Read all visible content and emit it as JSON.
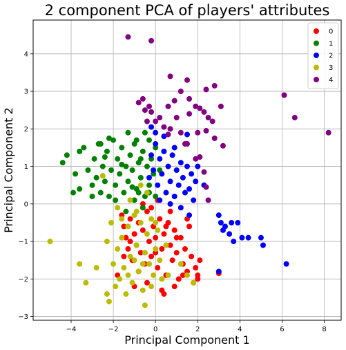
{
  "chart_data": {
    "type": "scatter",
    "title": "2 component PCA of players' attributes",
    "xlabel": "Principal Component 1",
    "ylabel": "Principal Component 2",
    "xlim": [
      -5.8,
      8.8
    ],
    "ylim": [
      -3.1,
      4.9
    ],
    "xticks": [
      "−4",
      "−2",
      "0",
      "2",
      "4",
      "6",
      "8"
    ],
    "xtick_values": [
      -4,
      -2,
      0,
      2,
      4,
      6,
      8
    ],
    "yticks": [
      "−3",
      "−2",
      "−1",
      "0",
      "1",
      "2",
      "3",
      "4"
    ],
    "ytick_values": [
      -3,
      -2,
      -1,
      0,
      1,
      2,
      3,
      4
    ],
    "grid": true,
    "legend_position": "top-right",
    "series": [
      {
        "name": "0",
        "color": "#ff0000",
        "points": [
          [
            -1.6,
            -0.3
          ],
          [
            -1.5,
            -0.6
          ],
          [
            -1.4,
            -0.9
          ],
          [
            -1.3,
            -1.2
          ],
          [
            -1.2,
            -0.4
          ],
          [
            -1.1,
            -1.5
          ],
          [
            -1.0,
            -0.8
          ],
          [
            -0.9,
            -1.1
          ],
          [
            -0.8,
            -0.5
          ],
          [
            -0.7,
            -1.3
          ],
          [
            -0.6,
            -0.7
          ],
          [
            -0.5,
            -1.6
          ],
          [
            -0.4,
            -0.2
          ],
          [
            -0.3,
            -1.0
          ],
          [
            -0.2,
            -1.4
          ],
          [
            -0.1,
            -0.6
          ],
          [
            0.0,
            -0.9
          ],
          [
            0.1,
            -1.7
          ],
          [
            0.2,
            -0.4
          ],
          [
            0.3,
            -1.2
          ],
          [
            0.4,
            -0.8
          ],
          [
            0.5,
            -1.9
          ],
          [
            0.6,
            -0.5
          ],
          [
            0.7,
            -1.1
          ],
          [
            0.8,
            -1.5
          ],
          [
            0.9,
            -0.7
          ],
          [
            1.0,
            -1.3
          ],
          [
            1.1,
            -2.0
          ],
          [
            1.2,
            -0.9
          ],
          [
            1.3,
            -1.6
          ],
          [
            1.4,
            -1.2
          ],
          [
            1.5,
            -1.8
          ],
          [
            1.6,
            -0.6
          ],
          [
            1.7,
            -1.4
          ],
          [
            1.8,
            -2.1
          ],
          [
            1.9,
            -1.7
          ],
          [
            2.0,
            -1.9
          ],
          [
            2.1,
            -1.5
          ],
          [
            -1.8,
            -1.9
          ],
          [
            -1.0,
            -2.2
          ],
          [
            -0.4,
            -2.1
          ],
          [
            0.3,
            -2.3
          ],
          [
            0.4,
            -2.4
          ],
          [
            0.9,
            -2.2
          ],
          [
            1.3,
            -1.9
          ],
          [
            2.0,
            -2.0
          ],
          [
            3.0,
            -1.85
          ],
          [
            -0.2,
            -0.1
          ],
          [
            0.1,
            0.1
          ],
          [
            -0.6,
            0.0
          ],
          [
            0.7,
            -0.2
          ],
          [
            1.0,
            -0.9
          ],
          [
            -1.2,
            -1.0
          ],
          [
            -0.8,
            -1.8
          ],
          [
            0.5,
            -0.6
          ],
          [
            1.5,
            -0.4
          ],
          [
            -1.5,
            -1.4
          ],
          [
            0.0,
            -1.3
          ]
        ]
      },
      {
        "name": "1",
        "color": "#008000",
        "points": [
          [
            -4.2,
            1.3
          ],
          [
            -4.4,
            1.1
          ],
          [
            -3.8,
            0.8
          ],
          [
            -3.6,
            0.4
          ],
          [
            -3.4,
            1.5
          ],
          [
            -3.2,
            0.9
          ],
          [
            -3.0,
            0.5
          ],
          [
            -2.9,
            1.2
          ],
          [
            -2.8,
            0.7
          ],
          [
            -2.7,
            1.6
          ],
          [
            -2.6,
            0.3
          ],
          [
            -2.5,
            1.0
          ],
          [
            -2.4,
            0.6
          ],
          [
            -2.3,
            1.4
          ],
          [
            -2.2,
            0.2
          ],
          [
            -2.1,
            0.9
          ],
          [
            -2.0,
            1.7
          ],
          [
            -1.9,
            0.5
          ],
          [
            -1.8,
            1.2
          ],
          [
            -1.7,
            0.8
          ],
          [
            -1.6,
            1.5
          ],
          [
            -1.5,
            0.3
          ],
          [
            -1.4,
            1.0
          ],
          [
            -1.3,
            0.6
          ],
          [
            -1.2,
            1.3
          ],
          [
            -1.1,
            0.9
          ],
          [
            -1.0,
            1.6
          ],
          [
            -0.9,
            0.4
          ],
          [
            -0.8,
            1.1
          ],
          [
            -0.7,
            0.7
          ],
          [
            -0.6,
            1.4
          ],
          [
            -0.5,
            0.2
          ],
          [
            -0.4,
            1.0
          ],
          [
            -0.3,
            0.5
          ],
          [
            -0.2,
            1.2
          ],
          [
            -0.1,
            0.8
          ],
          [
            0.0,
            1.5
          ],
          [
            -0.5,
            1.9
          ],
          [
            -0.9,
            1.7
          ],
          [
            -1.3,
            1.9
          ],
          [
            -2.6,
            1.6
          ],
          [
            -2.2,
            1.75
          ],
          [
            -3.6,
            1.4
          ],
          [
            -3.9,
            0.3
          ],
          [
            -3.0,
            0.2
          ],
          [
            -1.9,
            0.1
          ],
          [
            -1.4,
            -0.2
          ],
          [
            -1.0,
            0.1
          ],
          [
            -0.6,
            -0.1
          ],
          [
            -0.3,
            0.3
          ],
          [
            0.2,
            0.9
          ],
          [
            -0.7,
            1.2
          ],
          [
            -1.6,
            1.05
          ],
          [
            -2.4,
            1.25
          ],
          [
            -1.1,
            0.45
          ],
          [
            -0.3,
            1.7
          ],
          [
            0.0,
            0.2
          ],
          [
            -0.8,
            0.3
          ]
        ]
      },
      {
        "name": "2",
        "color": "#0000ff",
        "points": [
          [
            -0.2,
            1.3
          ],
          [
            -0.1,
            0.9
          ],
          [
            0.0,
            1.6
          ],
          [
            0.1,
            0.5
          ],
          [
            0.2,
            1.2
          ],
          [
            0.3,
            0.8
          ],
          [
            0.4,
            1.4
          ],
          [
            0.5,
            0.3
          ],
          [
            0.6,
            1.0
          ],
          [
            0.7,
            0.6
          ],
          [
            0.8,
            1.3
          ],
          [
            0.9,
            0.2
          ],
          [
            1.0,
            0.9
          ],
          [
            1.1,
            0.5
          ],
          [
            1.2,
            1.1
          ],
          [
            1.3,
            0.7
          ],
          [
            1.4,
            0.3
          ],
          [
            1.5,
            1.0
          ],
          [
            1.6,
            0.4
          ],
          [
            1.7,
            0.8
          ],
          [
            1.8,
            0.1
          ],
          [
            1.9,
            0.6
          ],
          [
            2.0,
            1.0
          ],
          [
            0.0,
            1.9
          ],
          [
            -0.2,
            2.05
          ],
          [
            0.4,
            1.8
          ],
          [
            1.5,
            1.85
          ],
          [
            0.2,
            0.1
          ],
          [
            0.7,
            0.0
          ],
          [
            1.2,
            -0.1
          ],
          [
            1.6,
            -0.3
          ],
          [
            3.0,
            -0.3
          ],
          [
            3.1,
            -0.5
          ],
          [
            3.3,
            -0.6
          ],
          [
            3.5,
            -0.8
          ],
          [
            3.7,
            -1.0
          ],
          [
            3.9,
            -0.5
          ],
          [
            4.1,
            -0.9
          ],
          [
            4.4,
            -0.9
          ],
          [
            5.0,
            -0.9
          ],
          [
            5.1,
            -1.1
          ],
          [
            3.6,
            -0.5
          ],
          [
            3.2,
            -0.7
          ],
          [
            3.0,
            -1.8
          ],
          [
            6.2,
            -1.6
          ],
          [
            2.3,
            0.5
          ],
          [
            -0.3,
            0.7
          ],
          [
            0.9,
            1.5
          ]
        ]
      },
      {
        "name": "3",
        "color": "#bbbb00",
        "points": [
          [
            -5.0,
            -1.0
          ],
          [
            -3.6,
            -1.6
          ],
          [
            -3.3,
            -2.1
          ],
          [
            -2.8,
            -1.7
          ],
          [
            -2.3,
            -2.4
          ],
          [
            -2.2,
            -2.6
          ],
          [
            -2.0,
            -1.6
          ],
          [
            -1.9,
            -2.2
          ],
          [
            -1.8,
            -1.2
          ],
          [
            -1.7,
            -2.0
          ],
          [
            -1.6,
            -0.9
          ],
          [
            -1.5,
            -1.7
          ],
          [
            -1.4,
            -2.4
          ],
          [
            -1.3,
            -0.6
          ],
          [
            -1.2,
            -1.4
          ],
          [
            -1.1,
            -2.1
          ],
          [
            -1.0,
            -0.3
          ],
          [
            -0.9,
            -1.1
          ],
          [
            -0.8,
            -1.8
          ],
          [
            -0.7,
            -0.5
          ],
          [
            -0.6,
            -2.3
          ],
          [
            -0.5,
            -1.3
          ],
          [
            -0.4,
            -0.8
          ],
          [
            -0.3,
            -1.6
          ],
          [
            -0.2,
            -0.4
          ],
          [
            -0.1,
            -1.9
          ],
          [
            0.0,
            -1.2
          ],
          [
            0.1,
            -0.7
          ],
          [
            0.2,
            -1.5
          ],
          [
            0.3,
            -2.0
          ],
          [
            -0.5,
            -2.7
          ],
          [
            0.6,
            -1.9
          ],
          [
            1.2,
            -1.6
          ],
          [
            1.5,
            -1.9
          ],
          [
            1.8,
            -2.1
          ],
          [
            -2.1,
            -0.5
          ],
          [
            -2.3,
            -1.0
          ],
          [
            -1.2,
            0.1
          ],
          [
            -0.7,
            0.5
          ],
          [
            -0.4,
            0.3
          ],
          [
            -0.9,
            -0.2
          ],
          [
            -1.6,
            -0.4
          ],
          [
            -1.3,
            -1.9
          ],
          [
            -0.6,
            -1.6
          ],
          [
            0.5,
            -1.1
          ],
          [
            -0.2,
            -2.2
          ],
          [
            -1.0,
            -1.5
          ],
          [
            -2.5,
            0.75
          ],
          [
            -1.8,
            -0.1
          ],
          [
            0.0,
            -0.5
          ]
        ]
      },
      {
        "name": "4",
        "color": "#800080",
        "points": [
          [
            -1.3,
            4.45
          ],
          [
            -0.2,
            4.35
          ],
          [
            0.7,
            3.4
          ],
          [
            1.5,
            3.3
          ],
          [
            1.2,
            3.0
          ],
          [
            2.4,
            3.05
          ],
          [
            2.8,
            3.15
          ],
          [
            1.6,
            2.8
          ],
          [
            1.9,
            2.6
          ],
          [
            2.1,
            2.55
          ],
          [
            2.3,
            2.45
          ],
          [
            3.1,
            2.6
          ],
          [
            0.9,
            2.75
          ],
          [
            0.6,
            2.6
          ],
          [
            0.2,
            2.3
          ],
          [
            0.7,
            2.0
          ],
          [
            1.2,
            1.9
          ],
          [
            1.6,
            2.4
          ],
          [
            2.0,
            1.9
          ],
          [
            2.5,
            2.3
          ],
          [
            2.7,
            2.2
          ],
          [
            2.4,
            1.95
          ],
          [
            2.8,
            1.75
          ],
          [
            3.2,
            1.55
          ],
          [
            -0.6,
            2.8
          ],
          [
            -0.8,
            2.7
          ],
          [
            -0.5,
            2.5
          ],
          [
            -0.2,
            2.45
          ],
          [
            -0.4,
            2.2
          ],
          [
            0.0,
            2.2
          ],
          [
            0.6,
            1.85
          ],
          [
            1.5,
            1.6
          ],
          [
            1.9,
            1.2
          ],
          [
            2.1,
            1.25
          ],
          [
            2.3,
            0.85
          ],
          [
            2.4,
            0.45
          ],
          [
            2.5,
            0.1
          ],
          [
            1.4,
            1.6
          ],
          [
            6.1,
            2.9
          ],
          [
            6.6,
            2.3
          ],
          [
            8.2,
            1.9
          ],
          [
            0.4,
            2.05
          ],
          [
            -0.3,
            2.6
          ],
          [
            1.0,
            2.3
          ]
        ]
      }
    ]
  }
}
